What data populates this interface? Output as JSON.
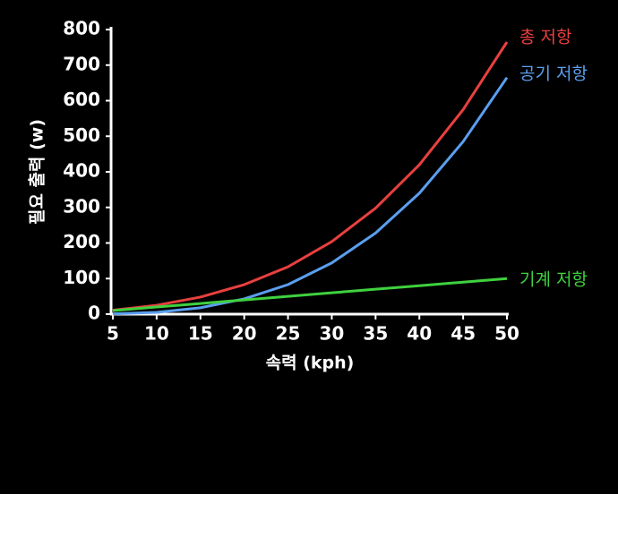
{
  "chart_data": {
    "type": "line",
    "x_label": "속력 (kph)",
    "y_label": "필요 출력 (w)",
    "x": [
      5,
      10,
      15,
      20,
      25,
      30,
      35,
      40,
      45,
      50
    ],
    "series": [
      {
        "name": "총 저항",
        "color": "#e8403f",
        "values": [
          11,
          25,
          48,
          83,
          133,
          204,
          298,
          420,
          575,
          765
        ]
      },
      {
        "name": "공기 저항",
        "color": "#5b9fef",
        "values": [
          1,
          5,
          18,
          43,
          83,
          144,
          228,
          340,
          485,
          665
        ]
      },
      {
        "name": "기계 저항",
        "color": "#3fd13f",
        "values": [
          10,
          20,
          30,
          40,
          50,
          60,
          70,
          80,
          90,
          100
        ]
      }
    ],
    "xlim": [
      5,
      50
    ],
    "xticks": [
      5,
      10,
      15,
      20,
      25,
      30,
      35,
      40,
      45,
      50
    ],
    "ylim": [
      0,
      800
    ],
    "yticks": [
      0,
      100,
      200,
      300,
      400,
      500,
      600,
      700,
      800
    ]
  }
}
